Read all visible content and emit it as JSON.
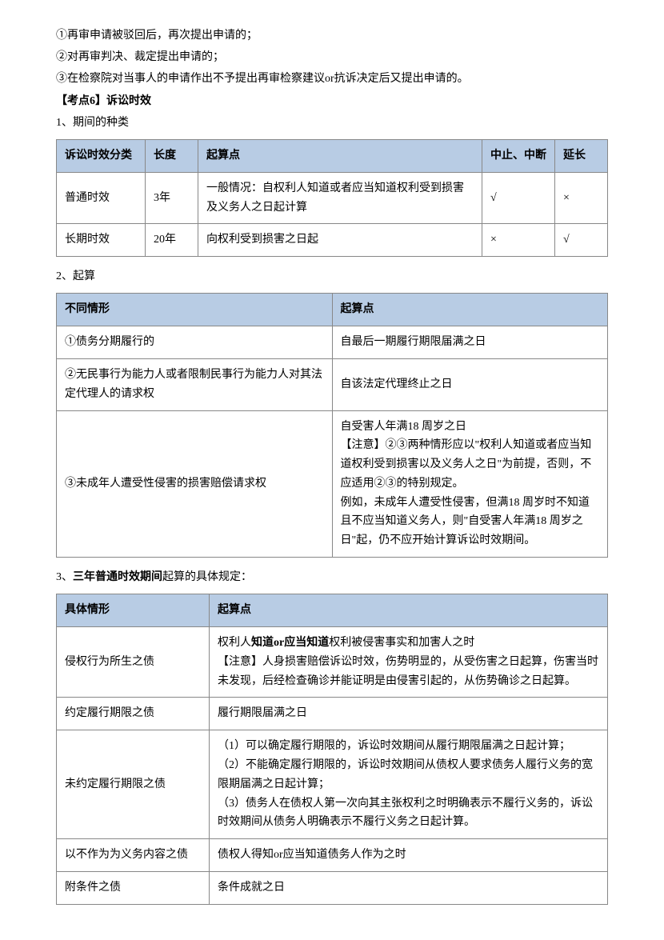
{
  "intro": {
    "line1": "①再审申请被驳回后，再次提出申请的；",
    "line2": "②对再审判决、裁定提出申请的；",
    "line3": "③在检察院对当事人的申请作出不予提出再审检察建议or抗诉决定后又提出申请的。"
  },
  "kaodian": "【考点6】诉讼时效",
  "sec1_title": "1、期间的种类",
  "table1": {
    "headers": [
      "诉讼时效分类",
      "长度",
      "起算点",
      "中止、中断",
      "延长"
    ],
    "rows": [
      [
        "普通时效",
        "3年",
        "一般情况：自权利人知道或者应当知道权利受到损害及义务人之日起计算",
        "√",
        "×"
      ],
      [
        "长期时效",
        "20年",
        "向权利受到损害之日起",
        "×",
        "√"
      ]
    ],
    "col_widths": [
      "90px",
      "45px",
      "auto",
      "70px",
      "45px"
    ]
  },
  "sec2_title": "2、起算",
  "table2": {
    "headers": [
      "不同情形",
      "起算点"
    ],
    "rows": [
      [
        "①债务分期履行的",
        "自最后一期履行期限届满之日"
      ],
      [
        "②无民事行为能力人或者限制民事行为能力人对其法定代理人的请求权",
        "自该法定代理终止之日"
      ],
      [
        "③未成年人遭受性侵害的损害赔偿请求权",
        "自受害人年满18 周岁之日\n【注意】②③两种情形应以\"权利人知道或者应当知道权利受到损害以及义务人之日\"为前提，否则，不应适用②③的特别规定。\n例如，未成年人遭受性侵害，但满18 周岁时不知道且不应当知道义务人，则\"自受害人年满18 周岁之日\"起，仍不应开始计算诉讼时效期间。"
      ]
    ],
    "col_widths": [
      "50%",
      "50%"
    ]
  },
  "sec3_title_pre": "3、",
  "sec3_title_bold": "三年普通时效期间",
  "sec3_title_post": "起算的具体规定：",
  "table3": {
    "headers": [
      "具体情形",
      "起算点"
    ],
    "rows": [
      [
        "侵权行为所生之债",
        "权利人<b>知道or应当知道</b>权利被侵害事实和加害人之时\n【注意】人身损害赔偿诉讼时效，伤势明显的，从受伤害之日起算，伤害当时未发现，后经检查确诊并能证明是由侵害引起的，从伤势确诊之日起算。"
      ],
      [
        "约定履行期限之债",
        "履行期限届满之日"
      ],
      [
        "未约定履行期限之债",
        "（1）可以确定履行期限的，诉讼时效期间从履行期限届满之日起计算；\n（2）不能确定履行期限的，诉讼时效期间从债权人要求债务人履行义务的宽限期届满之日起计算；\n（3）债务人在债权人第一次向其主张权利之时明确表示不履行义务的，诉讼时效期间从债务人明确表示不履行义务之日起计算。"
      ],
      [
        "以不作为为义务内容之债",
        "债权人得知or应当知道债务人作为之时"
      ],
      [
        "附条件之债",
        "条件成就之日"
      ]
    ],
    "col_widths": [
      "170px",
      "auto"
    ]
  }
}
